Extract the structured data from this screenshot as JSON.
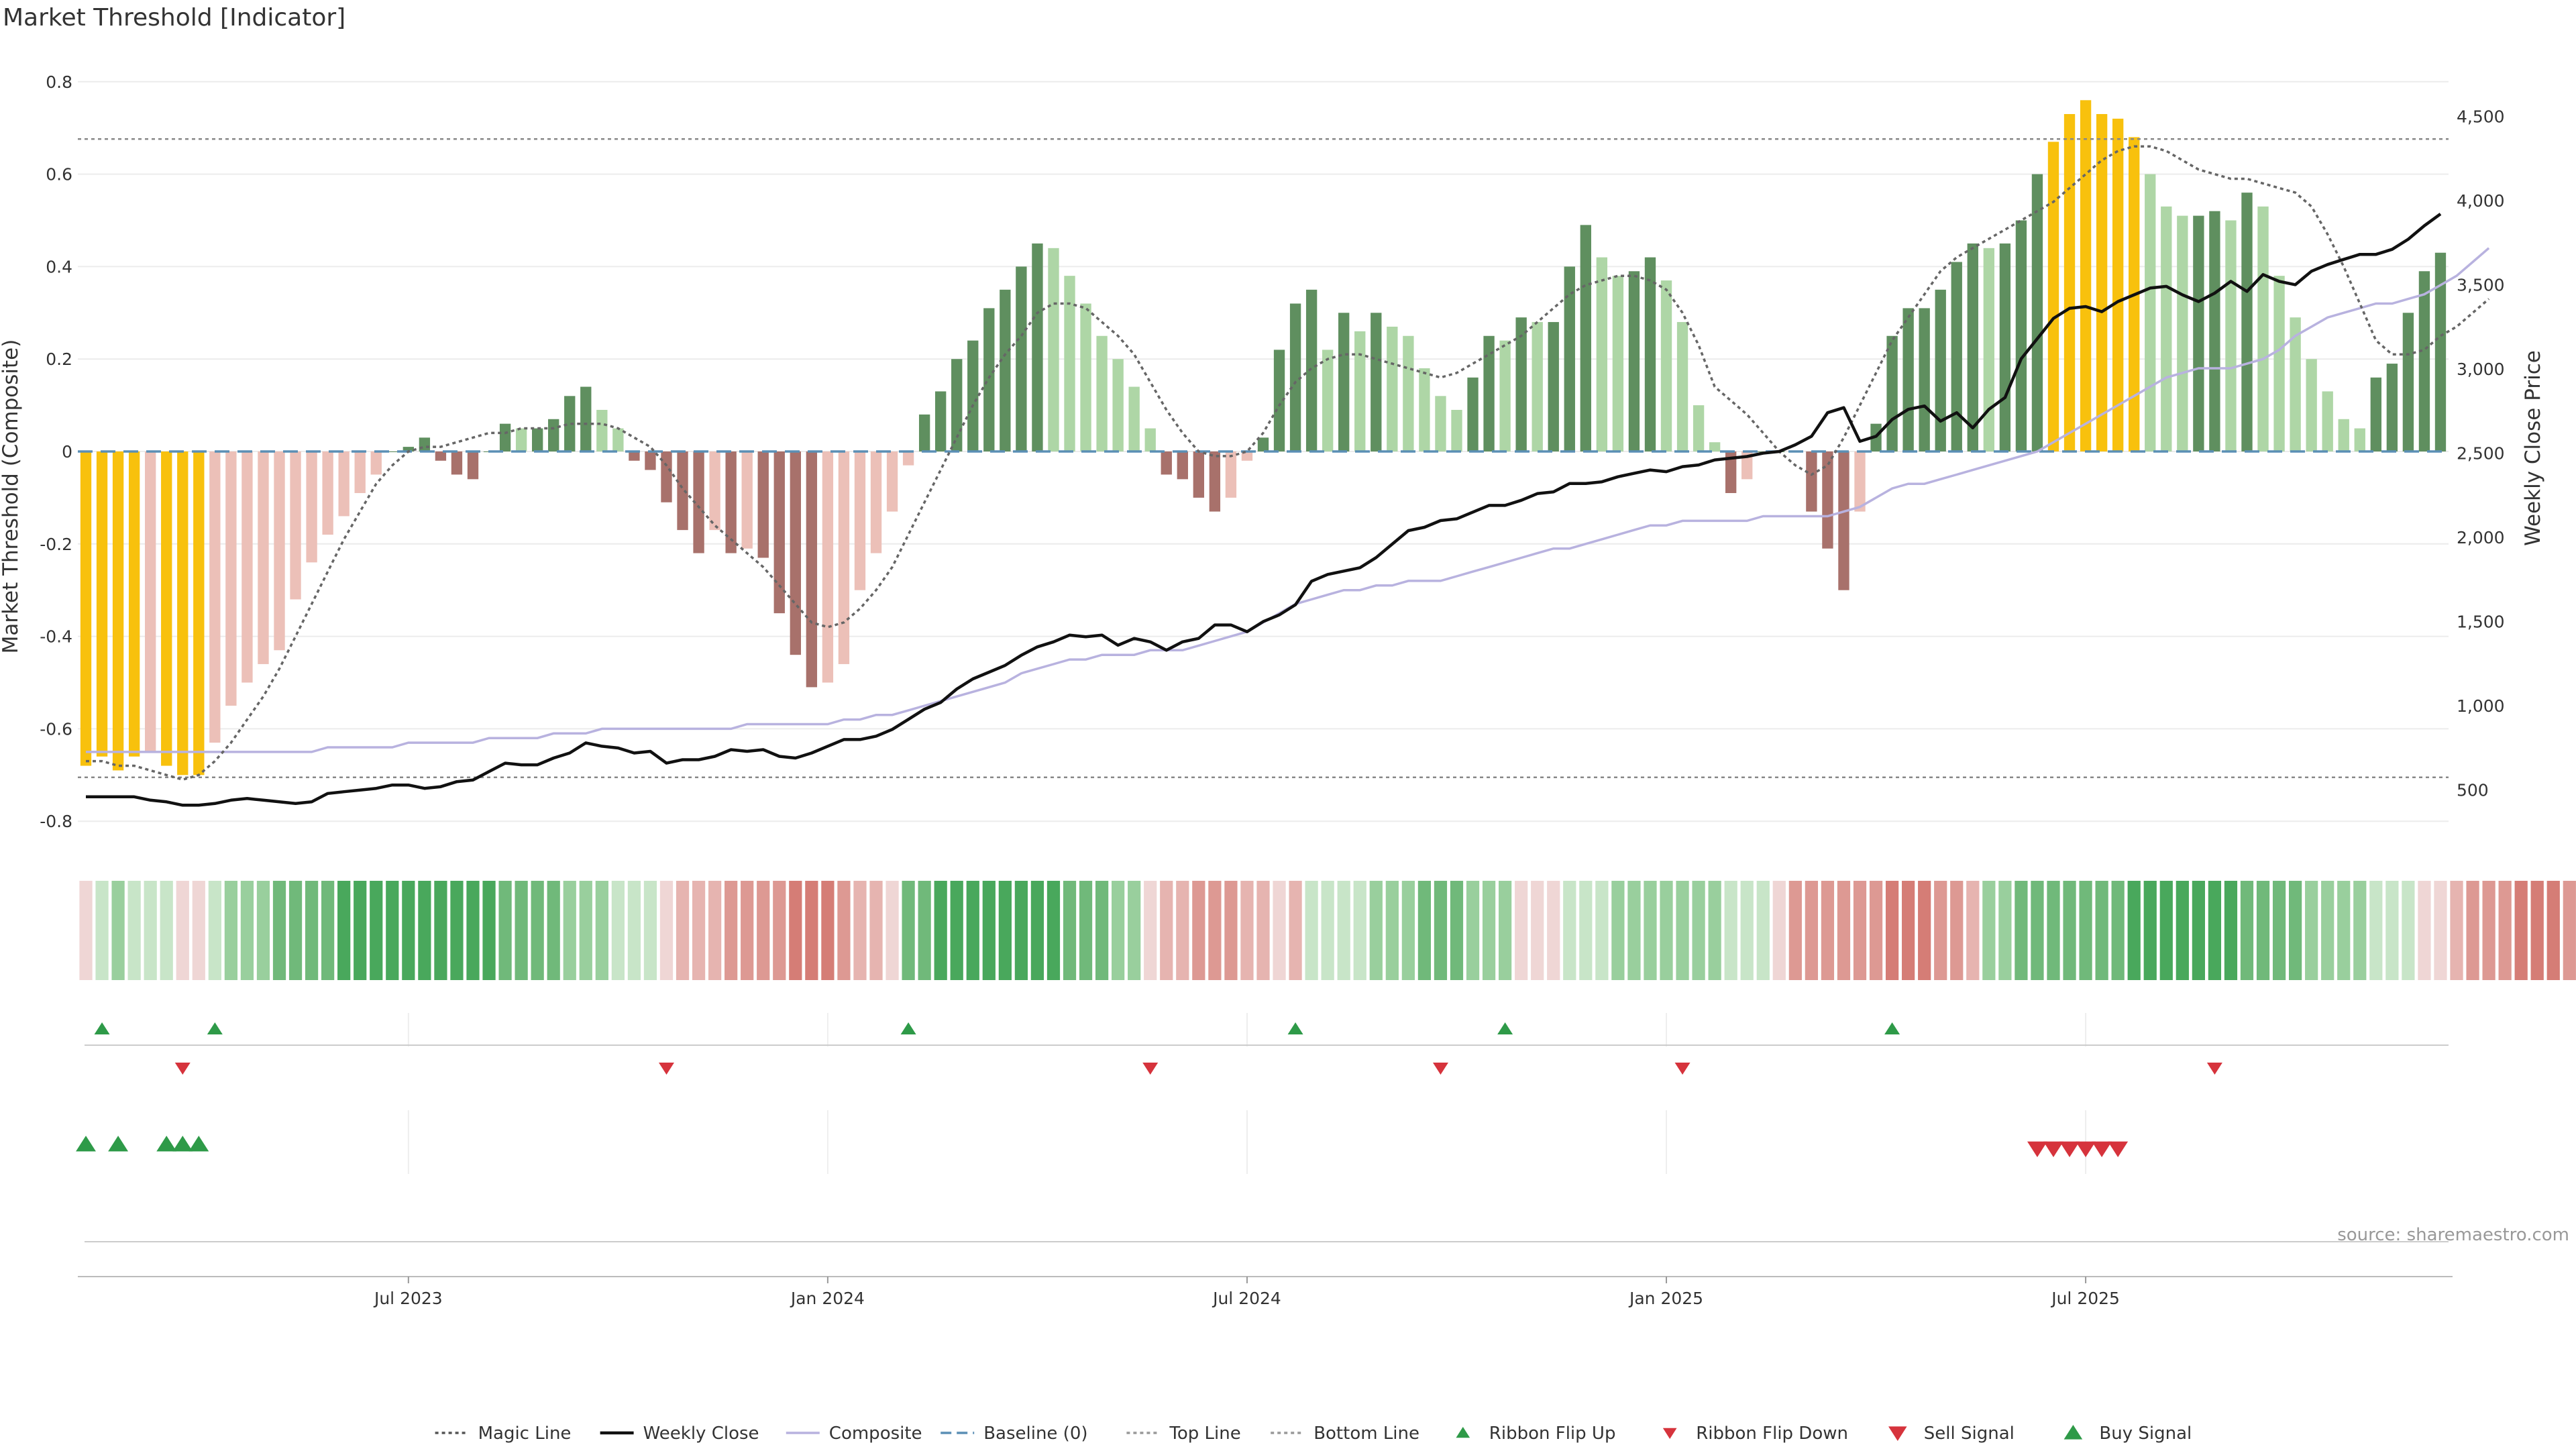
{
  "title": "Market Threshold [Indicator]",
  "source": "source: sharemaestro.com",
  "colors": {
    "strong_pos": "#5f8f5f",
    "weak_pos": "#aed6a6",
    "strong_neg": "#a8716b",
    "weak_neg": "#ecc0b8",
    "extreme": "#f8c10d",
    "close": "#111111",
    "composite": "#b8b2df",
    "magic": "#666666",
    "baseline": "#5b8fb5",
    "buy": "#2e9a48",
    "sell": "#d6333c"
  },
  "chart_data": {
    "type": "bar",
    "ylabel": "Market Threshold (Composite)",
    "y2label": "Weekly Close Price",
    "ylim": [
      -0.82,
      0.82
    ],
    "y2lim": [
      260,
      4760
    ],
    "yticks": [
      "0.8",
      "0.6",
      "0.4",
      "0.2",
      "0",
      "-0.2",
      "-0.4",
      "-0.6",
      "-0.8"
    ],
    "y2ticks": [
      "4,500",
      "4,000",
      "3,500",
      "3,000",
      "2,500",
      "2,000",
      "1,500",
      "1,000",
      "500"
    ],
    "xticks": [
      "Jul 2023",
      "Jan 2024",
      "Jul 2024",
      "Jan 2025",
      "Jul 2025"
    ],
    "top_line": 0.676,
    "bottom_line": -0.705,
    "composite": [
      -0.68,
      -0.66,
      -0.69,
      -0.66,
      -0.65,
      -0.68,
      -0.7,
      -0.7,
      -0.63,
      -0.55,
      -0.5,
      -0.46,
      -0.43,
      -0.32,
      -0.24,
      -0.18,
      -0.14,
      -0.09,
      -0.05,
      0,
      0.01,
      0.03,
      -0.02,
      -0.05,
      -0.06,
      0,
      0.06,
      0.05,
      0.05,
      0.07,
      0.12,
      0.14,
      0.09,
      0.05,
      -0.02,
      -0.04,
      -0.11,
      -0.17,
      -0.22,
      -0.17,
      -0.22,
      -0.21,
      -0.23,
      -0.35,
      -0.44,
      -0.51,
      -0.5,
      -0.46,
      -0.3,
      -0.22,
      -0.13,
      -0.03,
      0.08,
      0.13,
      0.2,
      0.24,
      0.31,
      0.35,
      0.4,
      0.45,
      0.44,
      0.38,
      0.32,
      0.25,
      0.2,
      0.14,
      0.05,
      -0.05,
      -0.06,
      -0.1,
      -0.13,
      -0.1,
      -0.02,
      0.03,
      0.22,
      0.32,
      0.35,
      0.22,
      0.3,
      0.26,
      0.3,
      0.27,
      0.25,
      0.18,
      0.12,
      0.09,
      0.16,
      0.25,
      0.24,
      0.29,
      0.28,
      0.28,
      0.4,
      0.49,
      0.42,
      0.38,
      0.39,
      0.42,
      0.37,
      0.28,
      0.1,
      0.02,
      -0.09,
      -0.06,
      0,
      0,
      0,
      -0.13,
      -0.21,
      -0.3,
      -0.13,
      0.06,
      0.25,
      0.31,
      0.31,
      0.35,
      0.41,
      0.45,
      0.44,
      0.45,
      0.5,
      0.6,
      0.67,
      0.73,
      0.76,
      0.73,
      0.72,
      0.68,
      0.6,
      0.53,
      0.51,
      0.51,
      0.52,
      0.5,
      0.56,
      0.53,
      0.38,
      0.29,
      0.2,
      0.13,
      0.07,
      0.05,
      0.16,
      0.19,
      0.3,
      0.39,
      0.43
    ],
    "magic_line": [
      -0.67,
      -0.67,
      -0.68,
      -0.68,
      -0.69,
      -0.7,
      -0.71,
      -0.7,
      -0.67,
      -0.63,
      -0.58,
      -0.53,
      -0.47,
      -0.4,
      -0.33,
      -0.26,
      -0.19,
      -0.13,
      -0.07,
      -0.03,
      0,
      0.01,
      0.01,
      0.02,
      0.03,
      0.04,
      0.04,
      0.05,
      0.05,
      0.05,
      0.06,
      0.06,
      0.06,
      0.05,
      0.03,
      0.01,
      -0.03,
      -0.08,
      -0.12,
      -0.16,
      -0.19,
      -0.22,
      -0.25,
      -0.29,
      -0.33,
      -0.37,
      -0.38,
      -0.37,
      -0.34,
      -0.3,
      -0.25,
      -0.18,
      -0.11,
      -0.04,
      0.03,
      0.1,
      0.16,
      0.21,
      0.25,
      0.3,
      0.32,
      0.32,
      0.31,
      0.28,
      0.25,
      0.21,
      0.15,
      0.09,
      0.04,
      0,
      -0.01,
      -0.01,
      0,
      0.04,
      0.1,
      0.15,
      0.18,
      0.2,
      0.21,
      0.21,
      0.2,
      0.19,
      0.18,
      0.17,
      0.16,
      0.17,
      0.19,
      0.21,
      0.23,
      0.25,
      0.28,
      0.31,
      0.34,
      0.36,
      0.37,
      0.38,
      0.38,
      0.37,
      0.35,
      0.3,
      0.23,
      0.14,
      0.11,
      0.08,
      0.04,
      0,
      -0.03,
      -0.05,
      -0.03,
      0.03,
      0.1,
      0.17,
      0.24,
      0.29,
      0.34,
      0.39,
      0.42,
      0.44,
      0.46,
      0.48,
      0.5,
      0.52,
      0.54,
      0.57,
      0.6,
      0.63,
      0.65,
      0.66,
      0.66,
      0.65,
      0.63,
      0.61,
      0.6,
      0.59,
      0.59,
      0.58,
      0.57,
      0.56,
      0.53,
      0.47,
      0.4,
      0.32,
      0.24,
      0.21,
      0.21,
      0.22,
      0.25,
      0.27,
      0.3,
      0.33
    ],
    "weekly_close": [
      460,
      460,
      460,
      460,
      440,
      430,
      410,
      410,
      420,
      440,
      450,
      440,
      430,
      420,
      430,
      480,
      490,
      500,
      510,
      530,
      530,
      510,
      520,
      550,
      560,
      610,
      660,
      650,
      650,
      690,
      720,
      780,
      760,
      750,
      720,
      730,
      660,
      680,
      680,
      700,
      740,
      730,
      740,
      700,
      690,
      720,
      760,
      800,
      800,
      820,
      860,
      920,
      980,
      1020,
      1100,
      1160,
      1200,
      1240,
      1300,
      1350,
      1380,
      1420,
      1410,
      1420,
      1360,
      1400,
      1380,
      1330,
      1380,
      1400,
      1480,
      1480,
      1440,
      1500,
      1540,
      1600,
      1740,
      1780,
      1800,
      1820,
      1880,
      1960,
      2040,
      2060,
      2100,
      2110,
      2150,
      2190,
      2190,
      2220,
      2260,
      2270,
      2320,
      2320,
      2330,
      2360,
      2380,
      2400,
      2390,
      2420,
      2430,
      2460,
      2470,
      2480,
      2500,
      2510,
      2550,
      2600,
      2740,
      2770,
      2570,
      2600,
      2700,
      2760,
      2780,
      2690,
      2740,
      2650,
      2760,
      2830,
      3060,
      3180,
      3300,
      3360,
      3370,
      3340,
      3400,
      3440,
      3480,
      3490,
      3440,
      3400,
      3450,
      3520,
      3460,
      3560,
      3520,
      3500,
      3580,
      3620,
      3650,
      3680,
      3680,
      3710,
      3770,
      3850,
      3920
    ],
    "composite_line": [
      -0.65,
      -0.65,
      -0.65,
      -0.65,
      -0.65,
      -0.65,
      -0.65,
      -0.65,
      -0.65,
      -0.65,
      -0.65,
      -0.65,
      -0.65,
      -0.65,
      -0.65,
      -0.64,
      -0.64,
      -0.64,
      -0.64,
      -0.64,
      -0.63,
      -0.63,
      -0.63,
      -0.63,
      -0.63,
      -0.62,
      -0.62,
      -0.62,
      -0.62,
      -0.61,
      -0.61,
      -0.61,
      -0.6,
      -0.6,
      -0.6,
      -0.6,
      -0.6,
      -0.6,
      -0.6,
      -0.6,
      -0.6,
      -0.59,
      -0.59,
      -0.59,
      -0.59,
      -0.59,
      -0.59,
      -0.58,
      -0.58,
      -0.57,
      -0.57,
      -0.56,
      -0.55,
      -0.54,
      -0.53,
      -0.52,
      -0.51,
      -0.5,
      -0.48,
      -0.47,
      -0.46,
      -0.45,
      -0.45,
      -0.44,
      -0.44,
      -0.44,
      -0.43,
      -0.43,
      -0.43,
      -0.42,
      -0.41,
      -0.4,
      -0.39,
      -0.37,
      -0.35,
      -0.33,
      -0.32,
      -0.31,
      -0.3,
      -0.3,
      -0.29,
      -0.29,
      -0.28,
      -0.28,
      -0.28,
      -0.27,
      -0.26,
      -0.25,
      -0.24,
      -0.23,
      -0.22,
      -0.21,
      -0.21,
      -0.2,
      -0.19,
      -0.18,
      -0.17,
      -0.16,
      -0.16,
      -0.15,
      -0.15,
      -0.15,
      -0.15,
      -0.15,
      -0.14,
      -0.14,
      -0.14,
      -0.14,
      -0.14,
      -0.13,
      -0.12,
      -0.1,
      -0.08,
      -0.07,
      -0.07,
      -0.06,
      -0.05,
      -0.04,
      -0.03,
      -0.02,
      -0.01,
      0,
      0.02,
      0.04,
      0.06,
      0.08,
      0.1,
      0.12,
      0.14,
      0.16,
      0.17,
      0.18,
      0.18,
      0.18,
      0.19,
      0.2,
      0.22,
      0.25,
      0.27,
      0.29,
      0.3,
      0.31,
      0.32,
      0.32,
      0.33,
      0.34,
      0.36,
      0.38,
      0.41,
      0.44
    ]
  },
  "ribbon": {
    "levels": [
      -1,
      1,
      2,
      1,
      1,
      1,
      -1,
      -1,
      1,
      2,
      2,
      2,
      3,
      3,
      3,
      3,
      4,
      4,
      4,
      4,
      4,
      4,
      4,
      4,
      4,
      4,
      3,
      3,
      3,
      3,
      2,
      2,
      2,
      1,
      1,
      1,
      -1,
      -2,
      -2,
      -2,
      -3,
      -3,
      -3,
      -3,
      -4,
      -4,
      -4,
      -3,
      -2,
      -2,
      -1,
      3,
      3,
      4,
      4,
      4,
      4,
      4,
      4,
      4,
      4,
      3,
      3,
      3,
      2,
      2,
      -1,
      -2,
      -2,
      -3,
      -3,
      -3,
      -2,
      -2,
      -1,
      -2,
      1,
      1,
      1,
      1,
      2,
      2,
      2,
      3,
      3,
      3,
      2,
      2,
      2,
      -1,
      -1,
      -1,
      1,
      1,
      1,
      2,
      2,
      2,
      2,
      2,
      2,
      2,
      1,
      1,
      1,
      -1,
      -3,
      -3,
      -3,
      -3,
      -3,
      -3,
      -4,
      -4,
      -4,
      -3,
      -3,
      -2,
      2,
      2,
      3,
      3,
      3,
      3,
      3,
      3,
      3,
      4,
      4,
      4,
      4,
      4,
      4,
      4,
      3,
      3,
      3,
      3,
      2,
      2,
      2,
      2,
      1,
      1,
      1,
      -1,
      -1,
      -2,
      -3,
      -3,
      -3,
      -4,
      -4,
      -4,
      -3,
      -2,
      -2,
      -1
    ],
    "pos_colors": [
      "#c8e5c8",
      "#99cf9d",
      "#70b97a",
      "#49a85c"
    ],
    "neg_colors": [
      "#efd6d5",
      "#e6b4b0",
      "#dd9993",
      "#d57d76"
    ]
  },
  "signals": {
    "ribbon_flip_up": [
      1,
      8,
      51,
      75,
      88,
      112
    ],
    "ribbon_flip_down": [
      6,
      36,
      66,
      84,
      99,
      132
    ],
    "buy": [
      0,
      2,
      5,
      6,
      7
    ],
    "sell": [
      121,
      122,
      123,
      124,
      125,
      126
    ]
  },
  "legend": [
    {
      "label": "Magic Line",
      "icon": "dotted-line-icon"
    },
    {
      "label": "Weekly Close",
      "icon": "solid-line-icon"
    },
    {
      "label": "Composite",
      "icon": "solid-line-icon"
    },
    {
      "label": "Baseline (0)",
      "icon": "dashed-line-icon"
    },
    {
      "label": "Top Line",
      "icon": "dotted-line-icon"
    },
    {
      "label": "Bottom Line",
      "icon": "dotted-line-icon"
    },
    {
      "label": "Ribbon Flip Up",
      "icon": "triangle-up-icon"
    },
    {
      "label": "Ribbon Flip Down",
      "icon": "triangle-down-icon"
    },
    {
      "label": "Sell Signal",
      "icon": "triangle-down-icon"
    },
    {
      "label": "Buy Signal",
      "icon": "triangle-up-icon"
    }
  ]
}
